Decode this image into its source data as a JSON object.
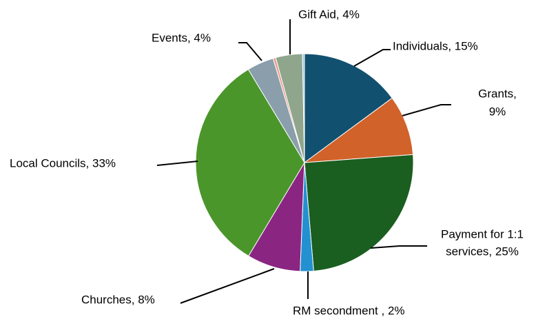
{
  "chart_data": {
    "type": "pie",
    "values": [
      15,
      9,
      25,
      2,
      8,
      33,
      4,
      0.4,
      4,
      0.3
    ],
    "value_labels": [
      [
        "Individuals, 15%"
      ],
      [
        "Grants,",
        "9%"
      ],
      [
        "Payment for 1:1",
        "services, 25%"
      ],
      [
        "RM secondment , 2%"
      ],
      [
        "Churches, 8%"
      ],
      [
        "Local Councils, 33%"
      ],
      [
        "Events, 4%"
      ],
      null,
      [
        "Gift Aid, 4%"
      ],
      null
    ],
    "colors": [
      "#12506f",
      "#d0622a",
      "#1a5e20",
      "#2390d0",
      "#8a2582",
      "#4b962b",
      "#8a9eac",
      "#e8a090",
      "#8fa68c",
      "#9cc6e4"
    ]
  }
}
